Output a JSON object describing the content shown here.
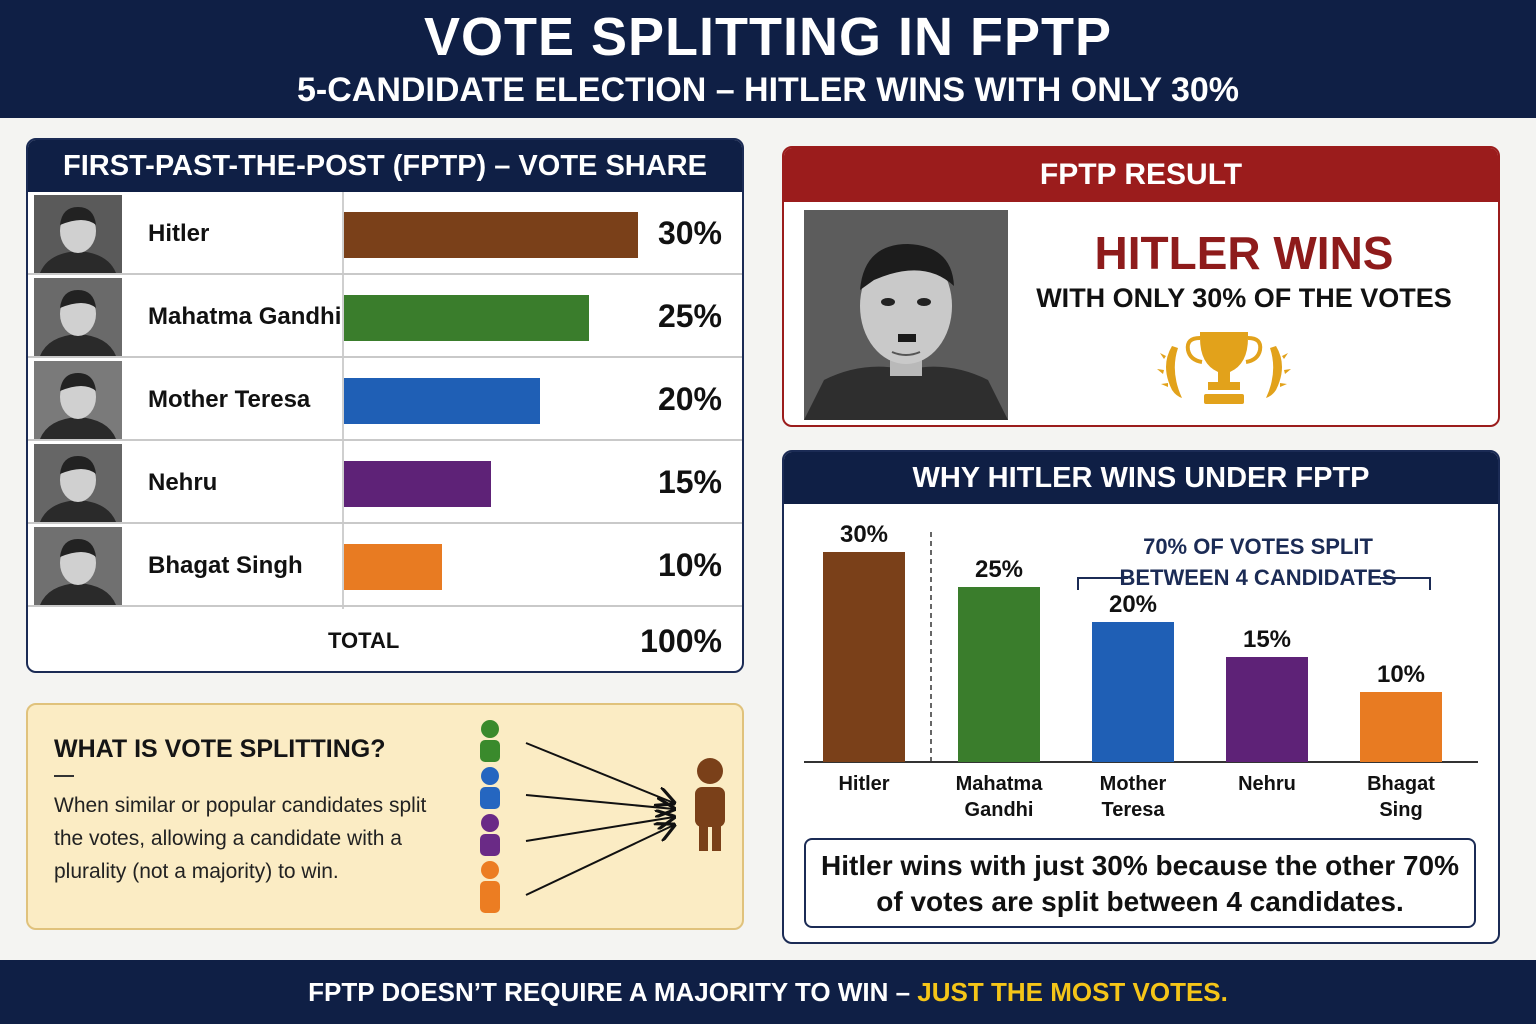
{
  "header": {
    "title": "VOTE SPLITTING IN FPTP",
    "subtitle": "5-CANDIDATE ELECTION – HITLER WINS WITH ONLY 30%"
  },
  "vote_table": {
    "title": "FIRST-PAST-THE-POST (FPTP) – VOTE SHARE",
    "rows": [
      {
        "name": "Hitler",
        "pct_label": "30%",
        "color": "#7a4019"
      },
      {
        "name": "Mahatma Gandhi",
        "pct_label": "25%",
        "color": "#3a7d2c"
      },
      {
        "name": "Mother Teresa",
        "pct_label": "20%",
        "color": "#1f5fb5"
      },
      {
        "name": "Nehru",
        "pct_label": "15%",
        "color": "#5e2277"
      },
      {
        "name": "Bhagat Singh",
        "pct_label": "10%",
        "color": "#e87b22"
      }
    ],
    "total_label": "TOTAL",
    "total_value": "100%"
  },
  "vote_split": {
    "title": "WHAT IS VOTE SPLITTING?",
    "text": "When similar or popular candidates split the votes, allowing a candidate with a plurality (not a majority) to win.",
    "icon": "voters-merging-icon"
  },
  "result": {
    "title": "FPTP RESULT",
    "winner": "HITLER WINS",
    "winner_sub": "WITH ONLY 30% OF THE VOTES",
    "icon": "trophy-icon"
  },
  "why": {
    "title": "WHY HITLER WINS UNDER FPTP",
    "annotation_line1": "70% OF VOTES SPLIT",
    "annotation_line2": "BETWEEN 4 CANDIDATES",
    "summary": "Hitler wins with just 30% because the other 70% of votes are split between 4 candidates."
  },
  "footer": {
    "text": "FPTP DOESN’T REQUIRE A MAJORITY TO WIN – ",
    "highlight": "JUST THE MOST VOTES."
  },
  "chart_data": [
    {
      "type": "bar",
      "orientation": "horizontal",
      "title": "FIRST-PAST-THE-POST (FPTP) – VOTE SHARE",
      "categories": [
        "Hitler",
        "Mahatma Gandhi",
        "Mother Teresa",
        "Nehru",
        "Bhagat Singh"
      ],
      "values": [
        30,
        25,
        20,
        15,
        10
      ],
      "value_labels": [
        "30%",
        "25%",
        "20%",
        "15%",
        "10%"
      ],
      "colors": [
        "#7a4019",
        "#3a7d2c",
        "#1f5fb5",
        "#5e2277",
        "#e87b22"
      ],
      "xlim": [
        0,
        30
      ]
    },
    {
      "type": "bar",
      "orientation": "vertical",
      "title": "WHY HITLER WINS UNDER FPTP",
      "categories": [
        "Hitler",
        "Mahatma Gandhi",
        "Mother Teresa",
        "Nehru",
        "Bhagat Sing"
      ],
      "values": [
        30,
        25,
        20,
        15,
        10
      ],
      "value_labels": [
        "30%",
        "25%",
        "20%",
        "15%",
        "10%"
      ],
      "colors": [
        "#7a4019",
        "#3a7d2c",
        "#1f5fb5",
        "#5e2277",
        "#e87b22"
      ],
      "ylim": [
        0,
        30
      ]
    }
  ]
}
